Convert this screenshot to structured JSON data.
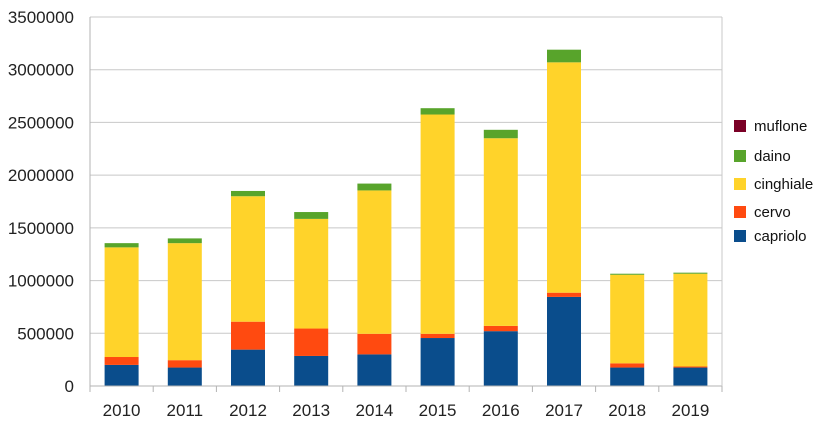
{
  "chart_data": {
    "type": "bar",
    "stacked": true,
    "categories": [
      "2010",
      "2011",
      "2012",
      "2013",
      "2014",
      "2015",
      "2016",
      "2017",
      "2018",
      "2019"
    ],
    "series": [
      {
        "name": "capriolo",
        "color": "#0a4d8c",
        "values": [
          200000,
          175000,
          345000,
          285000,
          300000,
          455000,
          520000,
          845000,
          175000,
          175000
        ]
      },
      {
        "name": "cervo",
        "color": "#ff4a10",
        "values": [
          75000,
          70000,
          265000,
          260000,
          195000,
          40000,
          50000,
          40000,
          40000,
          10000
        ]
      },
      {
        "name": "cinghiale",
        "color": "#ffd32a",
        "values": [
          1040000,
          1110000,
          1190000,
          1040000,
          1360000,
          2080000,
          1780000,
          2185000,
          840000,
          880000
        ]
      },
      {
        "name": "daino",
        "color": "#58a42b",
        "values": [
          40000,
          45000,
          50000,
          65000,
          65000,
          60000,
          80000,
          120000,
          10000,
          10000
        ]
      },
      {
        "name": "muflone",
        "color": "#7a0026",
        "values": [
          0,
          0,
          0,
          0,
          0,
          0,
          0,
          0,
          0,
          0
        ]
      }
    ],
    "legend_order": [
      "muflone",
      "daino",
      "cinghiale",
      "cervo",
      "capriolo"
    ],
    "legend_position": "right",
    "ylim": [
      0,
      3500000
    ],
    "yticks": [
      "0",
      "500000",
      "1000000",
      "1500000",
      "2000000",
      "2500000",
      "3000000",
      "3500000"
    ],
    "grid": true,
    "title": "",
    "xlabel": "",
    "ylabel": ""
  }
}
